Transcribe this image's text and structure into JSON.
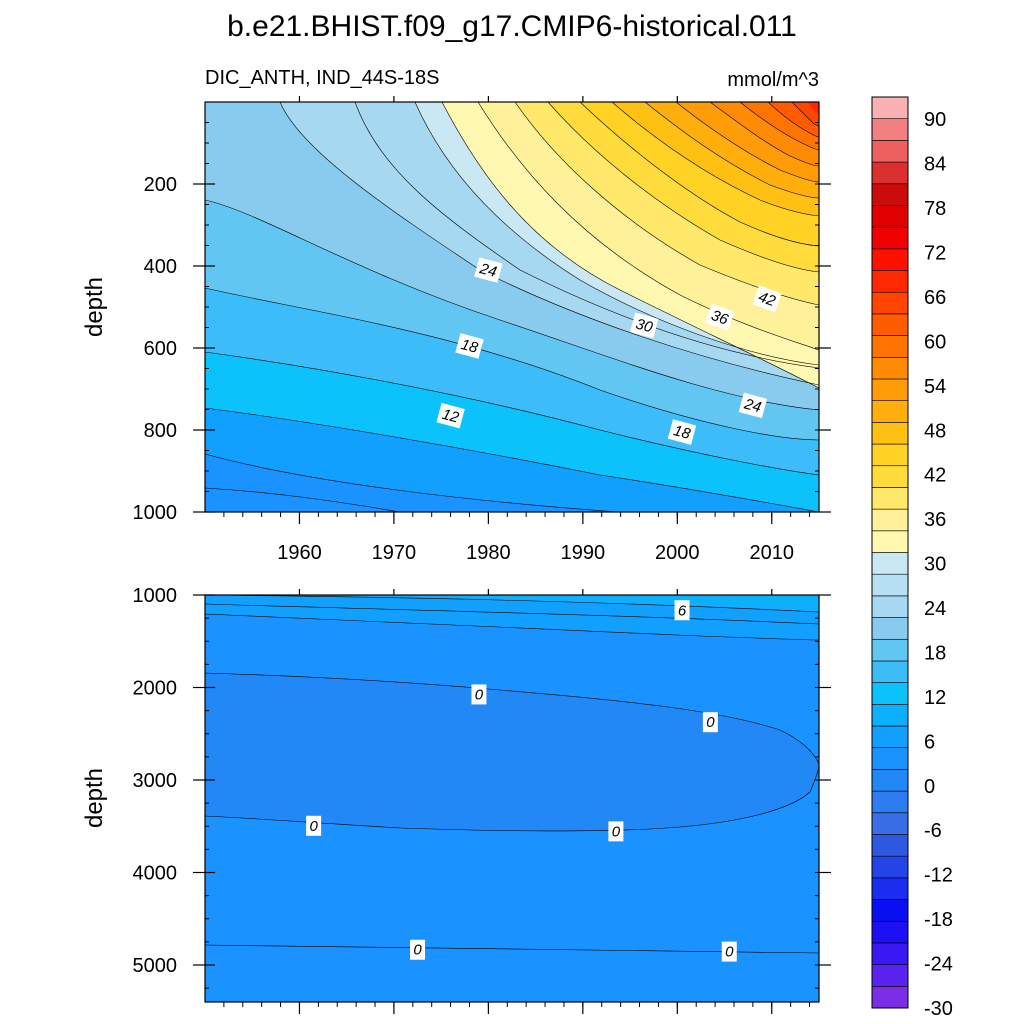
{
  "chart_data": {
    "type": "filled-contour",
    "title": "b.e21.BHIST.f09_g17.CMIP6-historical.011",
    "left_label": "DIC_ANTH, IND_44S-18S",
    "right_label": "mmol/m^3",
    "x_ticks": [
      "1960",
      "1970",
      "1980",
      "1990",
      "2000",
      "2010"
    ],
    "x_tick_values": [
      1960,
      1970,
      1980,
      1990,
      2000,
      2010
    ],
    "xlim": [
      1950,
      2015
    ],
    "panels": [
      {
        "name": "upper",
        "ylabel": "depth",
        "ylim": [
          0,
          1000
        ],
        "y_ticks": [
          "200",
          "400",
          "600",
          "800",
          "1000"
        ],
        "y_tick_values": [
          200,
          400,
          600,
          800,
          1000
        ],
        "contour_interval": 3,
        "contour_labels": [
          {
            "text": "24",
            "year": 1980,
            "depth": 410
          },
          {
            "text": "18",
            "year": 1978,
            "depth": 595
          },
          {
            "text": "12",
            "year": 1976,
            "depth": 765
          },
          {
            "text": "30",
            "year": 1996.5,
            "depth": 545
          },
          {
            "text": "36",
            "year": 2004.5,
            "depth": 525
          },
          {
            "text": "42",
            "year": 2009.5,
            "depth": 480
          },
          {
            "text": "24",
            "year": 2008,
            "depth": 740
          },
          {
            "text": "18",
            "year": 2000.5,
            "depth": 805
          }
        ]
      },
      {
        "name": "lower",
        "ylabel": "depth",
        "ylim": [
          1000,
          5400
        ],
        "y_ticks": [
          "1000",
          "2000",
          "3000",
          "4000",
          "5000"
        ],
        "y_tick_values": [
          1000,
          2000,
          3000,
          4000,
          5000
        ],
        "contour_labels": [
          {
            "text": "6",
            "year": 2000.5,
            "depth": 1165
          },
          {
            "text": "0",
            "year": 1979,
            "depth": 2075
          },
          {
            "text": "0",
            "year": 2003.5,
            "depth": 2375
          },
          {
            "text": "0",
            "year": 1961.5,
            "depth": 3495
          },
          {
            "text": "0",
            "year": 1993.5,
            "depth": 3555
          },
          {
            "text": "0",
            "year": 1972.5,
            "depth": 4835
          },
          {
            "text": "0",
            "year": 2005.5,
            "depth": 4855
          }
        ]
      }
    ],
    "colorbar": {
      "levels": [
        -30,
        -27,
        -24,
        -21,
        -18,
        -15,
        -12,
        -9,
        -6,
        -3,
        0,
        3,
        6,
        9,
        12,
        15,
        18,
        21,
        24,
        27,
        30,
        33,
        36,
        39,
        42,
        45,
        48,
        51,
        54,
        57,
        60,
        63,
        66,
        69,
        72,
        75,
        78,
        81,
        84,
        87,
        90,
        93
      ],
      "tick_labels": [
        "90",
        "84",
        "78",
        "72",
        "66",
        "60",
        "54",
        "48",
        "42",
        "36",
        "30",
        "24",
        "18",
        "12",
        "6",
        "0",
        "-6",
        "-12",
        "-18",
        "-24",
        "-30"
      ],
      "tick_values": [
        90,
        84,
        78,
        72,
        66,
        60,
        54,
        48,
        42,
        36,
        30,
        24,
        18,
        12,
        6,
        0,
        -6,
        -12,
        -18,
        -24,
        -30
      ],
      "colors": [
        "#7b2ee6",
        "#5a23f0",
        "#3a17f5",
        "#1e10f5",
        "#0a0ff2",
        "#1a2ef0",
        "#2544e8",
        "#2f58e0",
        "#3a6ee6",
        "#2f7cf0",
        "#2288f5",
        "#1a92ff",
        "#12a0ff",
        "#0cb0ff",
        "#0cc2fb",
        "#3cbdf9",
        "#62c6f3",
        "#88cbee",
        "#a6d8f2",
        "#b8e0f3",
        "#cae8f4",
        "#fff8b0",
        "#fff09a",
        "#ffe86a",
        "#ffdc3c",
        "#ffd224",
        "#ffc014",
        "#ffae0c",
        "#ff9c08",
        "#ff8a04",
        "#ff7400",
        "#ff5c00",
        "#ff4500",
        "#ff2800",
        "#ff1000",
        "#f00000",
        "#e00000",
        "#cc0c0c",
        "#dc3030",
        "#ec6060",
        "#f28080",
        "#f9b0b0"
      ]
    }
  }
}
